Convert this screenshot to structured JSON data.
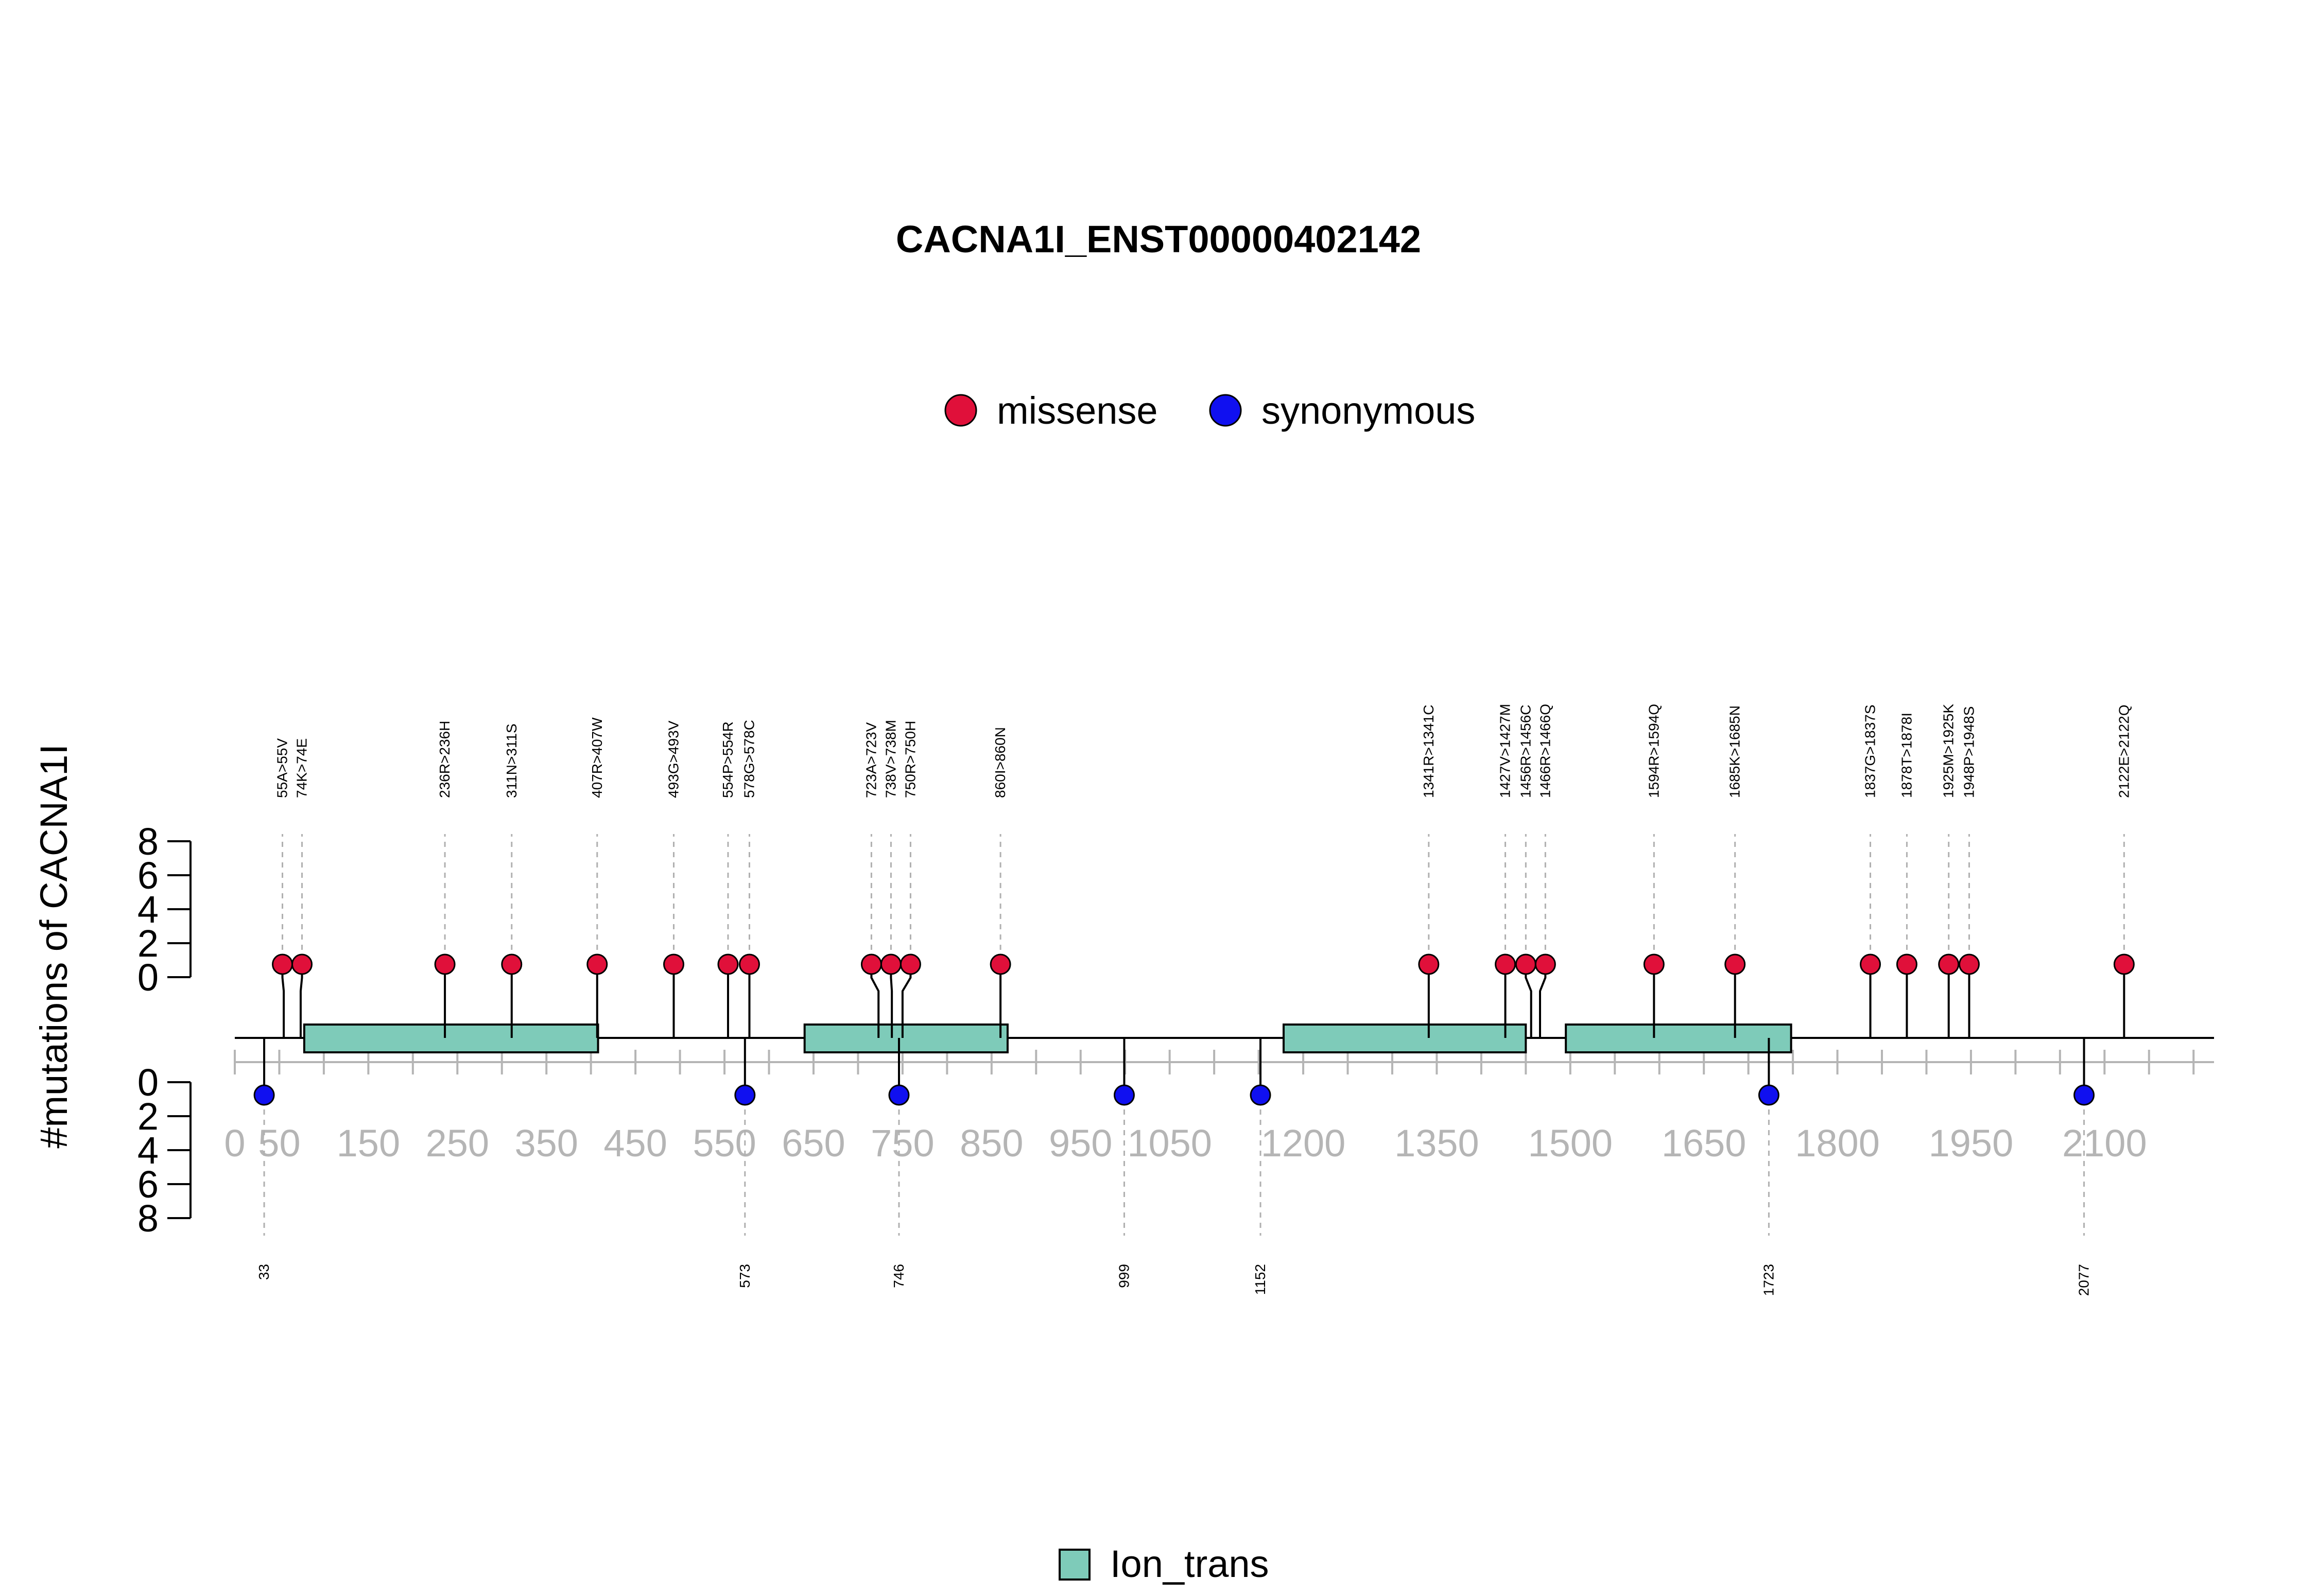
{
  "chart_data": {
    "type": "lollipop",
    "title": "CACNA1I_ENST00000402142",
    "ylabel": "#mutations of CACNA1I",
    "legend_top": [
      {
        "name": "missense",
        "color": "#e0103a"
      },
      {
        "name": "synonymous",
        "color": "#1010f0"
      }
    ],
    "legend_bottom": [
      {
        "name": "Ion_trans",
        "color": "#7ecbb9"
      }
    ],
    "x_ticks": [
      "0",
      "50",
      "150",
      "250",
      "350",
      "450",
      "550",
      "650",
      "750",
      "850",
      "950",
      "1050",
      "1200",
      "1350",
      "1500",
      "1650",
      "1800",
      "1950",
      "2100"
    ],
    "y_ticks_top": [
      "0",
      "2",
      "4",
      "6",
      "8"
    ],
    "y_ticks_bottom": [
      "0",
      "2",
      "4",
      "6",
      "8"
    ],
    "ylim": [
      0,
      8
    ],
    "domains": [
      {
        "name": "Ion_trans",
        "start": 78,
        "end": 408
      },
      {
        "name": "Ion_trans",
        "start": 640,
        "end": 868
      },
      {
        "name": "Ion_trans",
        "start": 1178,
        "end": 1450
      },
      {
        "name": "Ion_trans",
        "start": 1495,
        "end": 1748
      }
    ],
    "missense": [
      {
        "label": "55A>55V",
        "pos": 55,
        "count": 1
      },
      {
        "label": "74K>74E",
        "pos": 74,
        "count": 1
      },
      {
        "label": "236R>236H",
        "pos": 236,
        "count": 1
      },
      {
        "label": "311N>311S",
        "pos": 311,
        "count": 1
      },
      {
        "label": "407R>407W",
        "pos": 407,
        "count": 1
      },
      {
        "label": "493G>493V",
        "pos": 493,
        "count": 1
      },
      {
        "label": "554P>554R",
        "pos": 554,
        "count": 1
      },
      {
        "label": "578G>578C",
        "pos": 578,
        "count": 1
      },
      {
        "label": "723A>723V",
        "pos": 723,
        "count": 1
      },
      {
        "label": "738V>738M",
        "pos": 738,
        "count": 1
      },
      {
        "label": "750R>750H",
        "pos": 750,
        "count": 1
      },
      {
        "label": "860I>860N",
        "pos": 860,
        "count": 1
      },
      {
        "label": "1341R>1341C",
        "pos": 1341,
        "count": 1
      },
      {
        "label": "1427V>1427M",
        "pos": 1427,
        "count": 1
      },
      {
        "label": "1456R>1456C",
        "pos": 1456,
        "count": 1
      },
      {
        "label": "1466R>1466Q",
        "pos": 1466,
        "count": 1
      },
      {
        "label": "1594R>1594Q",
        "pos": 1594,
        "count": 1
      },
      {
        "label": "1685K>1685N",
        "pos": 1685,
        "count": 1
      },
      {
        "label": "1837G>1837S",
        "pos": 1837,
        "count": 1
      },
      {
        "label": "1878T>1878I",
        "pos": 1878,
        "count": 1
      },
      {
        "label": "1925M>1925K",
        "pos": 1925,
        "count": 1
      },
      {
        "label": "1948P>1948S",
        "pos": 1948,
        "count": 1
      },
      {
        "label": "2122E>2122Q",
        "pos": 2122,
        "count": 1
      }
    ],
    "synonymous": [
      {
        "label": "33",
        "pos": 33,
        "count": 1
      },
      {
        "label": "573",
        "pos": 573,
        "count": 1
      },
      {
        "label": "746",
        "pos": 746,
        "count": 1
      },
      {
        "label": "999",
        "pos": 999,
        "count": 1
      },
      {
        "label": "1152",
        "pos": 1152,
        "count": 1
      },
      {
        "label": "1723",
        "pos": 1723,
        "count": 1
      },
      {
        "label": "2077",
        "pos": 2077,
        "count": 1
      }
    ]
  }
}
